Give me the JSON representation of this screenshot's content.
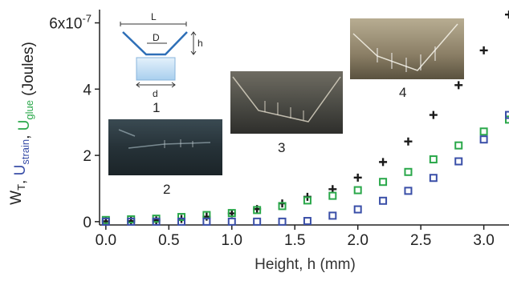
{
  "chart_data": {
    "type": "scatter",
    "xlabel": "Height, h (mm)",
    "ylabel_parts": [
      {
        "text": "W",
        "sub": "T",
        "color": "#222222"
      },
      {
        "text": ", ",
        "sub": "",
        "color": "#222222"
      },
      {
        "text": "U",
        "sub": "strain",
        "color": "#3a4fa8"
      },
      {
        "text": ", ",
        "sub": "",
        "color": "#222222"
      },
      {
        "text": "U",
        "sub": "glue",
        "color": "#2aa84a"
      },
      {
        "text": " (Joules)",
        "sub": "",
        "color": "#222222"
      }
    ],
    "xlim": [
      -0.05,
      3.2
    ],
    "ylim": [
      -1e-08,
      6.4e-07
    ],
    "x_ticks": [
      {
        "value": 0.0,
        "label": "0.0"
      },
      {
        "value": 0.5,
        "label": "0.5"
      },
      {
        "value": 1.0,
        "label": "1.0"
      },
      {
        "value": 1.5,
        "label": "1.5"
      },
      {
        "value": 2.0,
        "label": "2.0"
      },
      {
        "value": 2.5,
        "label": "2.5"
      },
      {
        "value": 3.0,
        "label": "3.0"
      }
    ],
    "y_ticks": [
      {
        "value": 0,
        "label": "0"
      },
      {
        "value": 2e-07,
        "label": "2"
      },
      {
        "value": 4e-07,
        "label": "4"
      },
      {
        "value": 6e-07,
        "label": "6x10",
        "exponent": "-7"
      }
    ],
    "series": [
      {
        "marker": "plus",
        "color": "#1a1a1a",
        "x": [
          0.0,
          0.2,
          0.4,
          0.6,
          0.8,
          1.0,
          1.2,
          1.4,
          1.6,
          1.8,
          2.0,
          2.2,
          2.4,
          2.6,
          2.8,
          3.0,
          3.2
        ],
        "y": [
          1e-09,
          2e-09,
          4e-09,
          8e-09,
          1.5e-08,
          2.5e-08,
          3.8e-08,
          5.5e-08,
          7.5e-08,
          9.8e-08,
          1.33e-07,
          1.8e-07,
          2.42e-07,
          3.22e-07,
          4.12e-07,
          5.17e-07,
          6.25e-07
        ]
      },
      {
        "marker": "square",
        "color": "#2aa84a",
        "x": [
          0.0,
          0.2,
          0.4,
          0.6,
          0.8,
          1.0,
          1.2,
          1.4,
          1.6,
          1.8,
          2.0,
          2.2,
          2.4,
          2.6,
          2.8,
          3.0,
          3.2
        ],
        "y": [
          5e-09,
          7e-09,
          9e-09,
          1.4e-08,
          2e-08,
          2.6e-08,
          3.5e-08,
          4.7e-08,
          6.4e-08,
          7.8e-08,
          9.5e-08,
          1.2e-07,
          1.5e-07,
          1.88e-07,
          2.3e-07,
          2.72e-07,
          3.08e-07
        ]
      },
      {
        "marker": "square",
        "color": "#3a4fa8",
        "x": [
          0.0,
          0.2,
          0.4,
          0.6,
          0.8,
          1.0,
          1.2,
          1.4,
          1.6,
          1.8,
          2.0,
          2.2,
          2.4,
          2.6,
          2.8,
          3.0,
          3.2
        ],
        "y": [
          0.0,
          0.0,
          0.0,
          0.0,
          0.0,
          0.0,
          0.0,
          0.0,
          2e-09,
          1.8e-08,
          3.7e-08,
          6.3e-08,
          9.3e-08,
          1.32e-07,
          1.82e-07,
          2.48e-07,
          3.22e-07
        ]
      }
    ],
    "insets": [
      {
        "label": "1",
        "kind": "schematic",
        "labels": [
          "L",
          "D",
          "h",
          "d"
        ]
      },
      {
        "label": "2",
        "kind": "photo"
      },
      {
        "label": "3",
        "kind": "photo"
      },
      {
        "label": "4",
        "kind": "photo"
      }
    ]
  }
}
